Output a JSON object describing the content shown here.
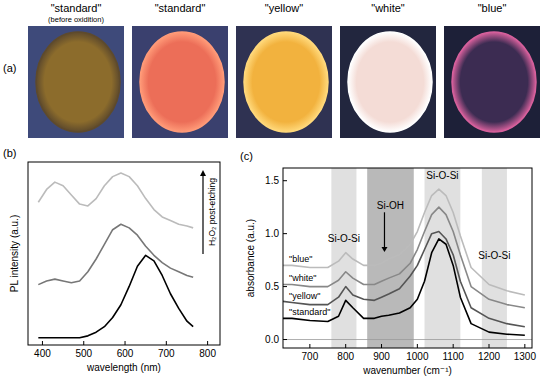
{
  "photos": {
    "panel": "(a)",
    "items": [
      {
        "label": "\"standard\"",
        "sublabel": "(before oxidition)"
      },
      {
        "label": "\"standard\""
      },
      {
        "label": "\"yellow\""
      },
      {
        "label": "\"white\""
      },
      {
        "label": "\"blue\""
      }
    ]
  },
  "chart_data": [
    {
      "type": "line",
      "panel": "(b)",
      "x_label": "wavelength (nm)",
      "y_label": "PL intensity (a.u.)",
      "x": [
        390,
        410,
        430,
        450,
        470,
        490,
        510,
        530,
        550,
        570,
        590,
        610,
        630,
        650,
        670,
        690,
        710,
        730,
        750,
        765
      ],
      "series": [
        {
          "color": "#000000",
          "values": [
            0.04,
            0.04,
            0.04,
            0.04,
            0.04,
            0.04,
            0.05,
            0.07,
            0.1,
            0.15,
            0.22,
            0.32,
            0.43,
            0.49,
            0.46,
            0.38,
            0.28,
            0.2,
            0.13,
            0.1
          ]
        },
        {
          "color": "#777777",
          "values": [
            0.33,
            0.35,
            0.36,
            0.35,
            0.34,
            0.35,
            0.4,
            0.47,
            0.55,
            0.63,
            0.66,
            0.64,
            0.6,
            0.54,
            0.49,
            0.45,
            0.42,
            0.4,
            0.38,
            0.37
          ]
        },
        {
          "color": "#bbbbbb",
          "values": [
            0.78,
            0.85,
            0.89,
            0.87,
            0.82,
            0.77,
            0.76,
            0.8,
            0.87,
            0.92,
            0.94,
            0.92,
            0.87,
            0.8,
            0.74,
            0.7,
            0.68,
            0.66,
            0.65,
            0.64
          ]
        }
      ],
      "xlim": [
        365,
        830
      ],
      "xticks": [
        400,
        500,
        600,
        700,
        800
      ],
      "ylim": [
        0,
        1
      ],
      "tick_labels": "x",
      "annotations": [
        {
          "text": "H₂O₂ post-etching",
          "marker": "arrow"
        }
      ]
    },
    {
      "type": "line",
      "panel": "(c)",
      "x_label": "wavenumber (cm⁻¹)",
      "y_label": "absorbance (a.u.)",
      "x": [
        625,
        650,
        700,
        750,
        780,
        800,
        820,
        850,
        880,
        900,
        920,
        950,
        980,
        1000,
        1020,
        1040,
        1060,
        1080,
        1100,
        1120,
        1150,
        1200,
        1250,
        1300
      ],
      "series": [
        {
          "name": "\"standard\"",
          "color": "#000000",
          "values": [
            0.2,
            0.2,
            0.18,
            0.17,
            0.22,
            0.37,
            0.3,
            0.2,
            0.2,
            0.22,
            0.23,
            0.25,
            0.3,
            0.38,
            0.55,
            0.82,
            0.95,
            0.9,
            0.7,
            0.4,
            0.15,
            0.07,
            0.05,
            0.04
          ]
        },
        {
          "name": "\"yellow\"",
          "color": "#555555",
          "values": [
            0.36,
            0.35,
            0.33,
            0.33,
            0.4,
            0.5,
            0.42,
            0.38,
            0.37,
            0.4,
            0.43,
            0.48,
            0.6,
            0.7,
            0.85,
            1.0,
            1.02,
            0.95,
            0.8,
            0.55,
            0.3,
            0.2,
            0.15,
            0.12
          ]
        },
        {
          "name": "\"white\"",
          "color": "#888888",
          "values": [
            0.52,
            0.52,
            0.5,
            0.5,
            0.56,
            0.64,
            0.58,
            0.52,
            0.52,
            0.55,
            0.58,
            0.62,
            0.72,
            0.85,
            1.02,
            1.18,
            1.25,
            1.18,
            1.02,
            0.8,
            0.5,
            0.38,
            0.33,
            0.3
          ]
        },
        {
          "name": "\"blue\"",
          "color": "#bbbbbb",
          "values": [
            0.7,
            0.7,
            0.68,
            0.68,
            0.74,
            0.82,
            0.76,
            0.7,
            0.7,
            0.72,
            0.76,
            0.8,
            0.9,
            1.02,
            1.2,
            1.36,
            1.42,
            1.36,
            1.2,
            0.98,
            0.68,
            0.52,
            0.46,
            0.42
          ]
        }
      ],
      "xlim": [
        625,
        1320
      ],
      "xticks": [
        700,
        800,
        900,
        1000,
        1100,
        1200,
        1300
      ],
      "ylim": [
        -0.08,
        1.62
      ],
      "yticks": [
        {
          "value": 0,
          "label": "0.0"
        },
        {
          "value": 0.5,
          "label": "0.5"
        },
        {
          "value": 1,
          "label": "1.0"
        },
        {
          "value": 1.5,
          "label": "1.5"
        }
      ],
      "annotations": [
        {
          "text": "Si-O-Si",
          "from": 760,
          "to": 830,
          "color": "#e0e0e0"
        },
        {
          "text": "Si-OH",
          "from": 860,
          "to": 990,
          "color": "#b9b9b9",
          "marker": "arrow"
        },
        {
          "text": "Si-O-Si",
          "from": 1020,
          "to": 1120,
          "color": "#e0e0e0"
        },
        {
          "text": "Si-O-Si",
          "from": 1180,
          "to": 1250,
          "color": "#e0e0e0"
        }
      ]
    }
  ]
}
